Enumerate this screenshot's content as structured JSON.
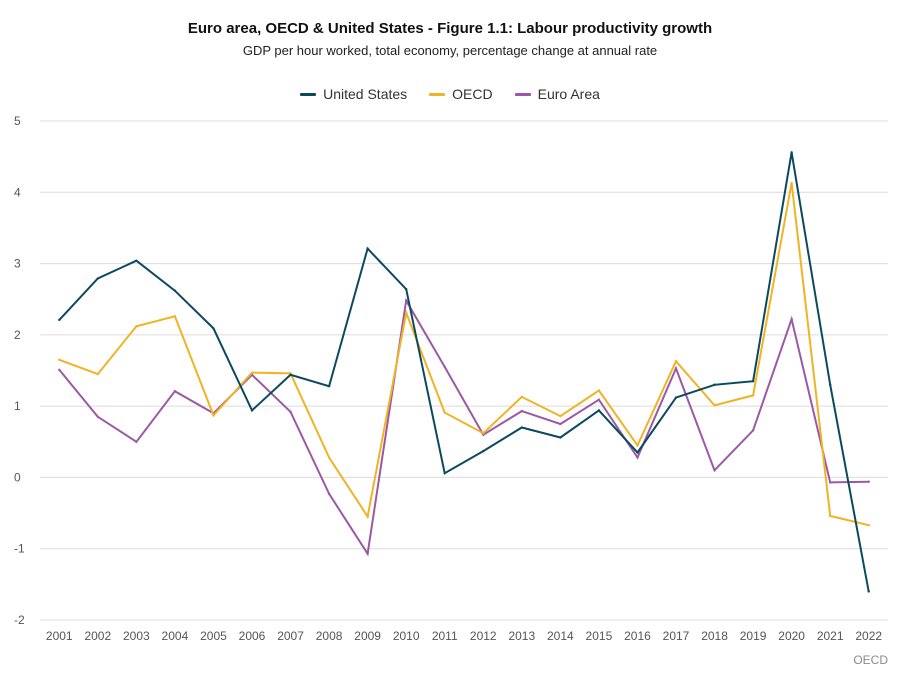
{
  "chart_data": {
    "type": "line",
    "title": "Euro area, OECD & United States - Figure 1.1: Labour productivity growth",
    "subtitle": "GDP per hour worked, total economy, percentage change at annual rate",
    "xlabel": "",
    "ylabel": "",
    "ylim": [
      -2,
      5
    ],
    "yticks": [
      "-2",
      "-1",
      "0",
      "1",
      "2",
      "3",
      "4",
      "5"
    ],
    "categories": [
      "2001",
      "2002",
      "2003",
      "2004",
      "2005",
      "2006",
      "2007",
      "2008",
      "2009",
      "2010",
      "2011",
      "2012",
      "2013",
      "2014",
      "2015",
      "2016",
      "2017",
      "2018",
      "2019",
      "2020",
      "2021",
      "2022"
    ],
    "grid": true,
    "legend_position": "top-center",
    "series": [
      {
        "name": "United States",
        "color": "#0b4a5e",
        "values": [
          2.21,
          2.79,
          3.04,
          2.62,
          2.09,
          0.94,
          1.44,
          1.28,
          3.21,
          2.64,
          0.06,
          0.37,
          0.7,
          0.56,
          0.94,
          0.35,
          1.12,
          1.3,
          1.35,
          4.56,
          1.3,
          -1.6
        ]
      },
      {
        "name": "OECD",
        "color": "#f0b323",
        "values": [
          1.65,
          1.45,
          2.12,
          2.26,
          0.87,
          1.47,
          1.46,
          0.28,
          -0.55,
          2.31,
          0.91,
          0.62,
          1.13,
          0.86,
          1.22,
          0.45,
          1.63,
          1.01,
          1.15,
          4.13,
          -0.54,
          -0.67
        ]
      },
      {
        "name": "Euro Area",
        "color": "#9b59a5",
        "values": [
          1.51,
          0.85,
          0.5,
          1.21,
          0.9,
          1.44,
          0.92,
          -0.23,
          -1.07,
          2.48,
          1.55,
          0.6,
          0.93,
          0.75,
          1.09,
          0.28,
          1.53,
          0.1,
          0.66,
          2.22,
          -0.07,
          -0.06
        ]
      }
    ]
  },
  "source_label": "OECD"
}
